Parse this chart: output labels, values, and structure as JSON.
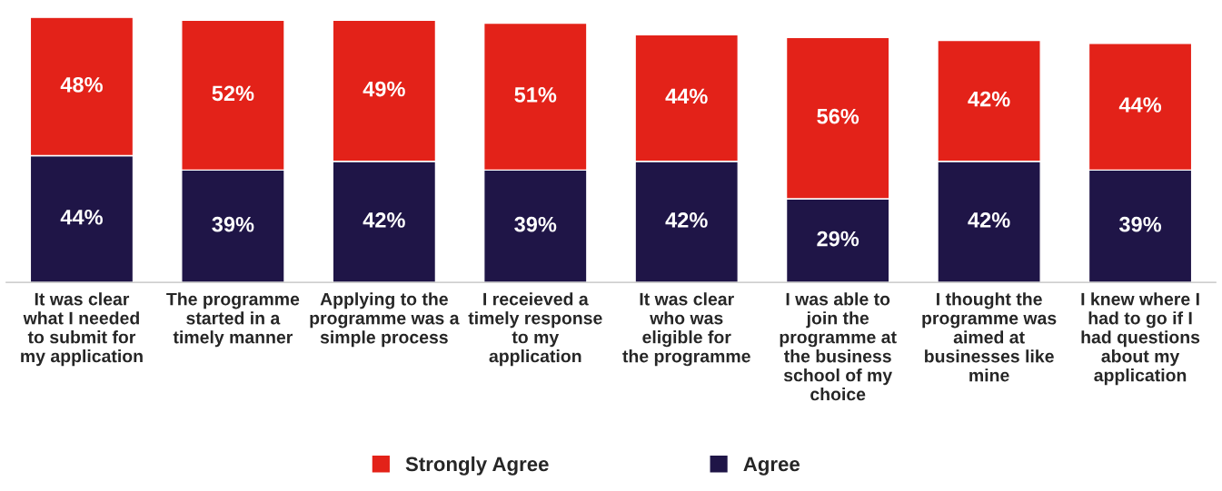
{
  "chart_data": {
    "type": "bar",
    "stacked": true,
    "legend": "bottom",
    "grid": false,
    "categories": [
      "It was clear what I needed to submit for my application",
      "The programme started in a timely manner",
      "Applying to the programme was a simple process",
      "I receieved a timely response to my application",
      "It was clear who was eligible for the programme",
      "I was able to join the programme at the business school of my choice",
      "I thought the programme was aimed at businesses like mine",
      "I knew where I had to go if I had questions about my application"
    ],
    "series": [
      {
        "name": "Agree",
        "color": "#1f1547",
        "values": [
          44,
          39,
          42,
          39,
          42,
          29,
          42,
          39
        ],
        "value_labels": [
          "44%",
          "39%",
          "42%",
          "39%",
          "42%",
          "29%",
          "42%",
          "39%"
        ]
      },
      {
        "name": "Strongly Agree",
        "color": "#e32219",
        "values": [
          48,
          52,
          49,
          51,
          44,
          56,
          42,
          44
        ],
        "value_labels": [
          "48%",
          "52%",
          "49%",
          "51%",
          "44%",
          "56%",
          "42%",
          "44%"
        ]
      }
    ]
  }
}
